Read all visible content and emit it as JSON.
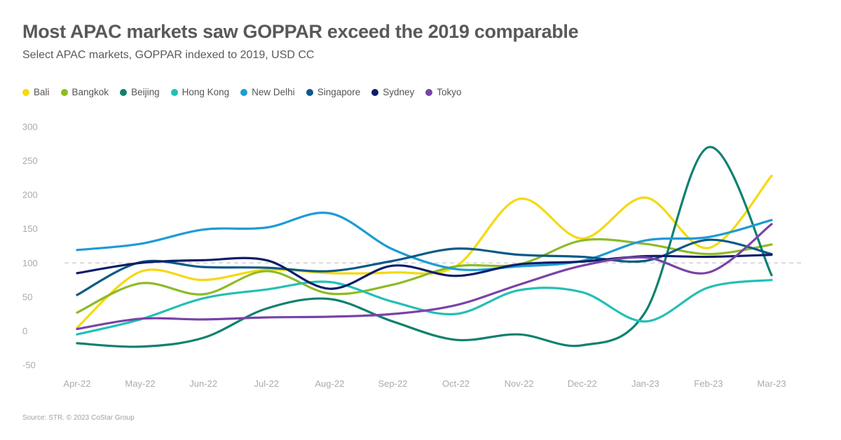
{
  "header": {
    "title": "Most APAC markets saw GOPPAR exceed the 2019 comparable",
    "subtitle": "Select APAC markets, GOPPAR indexed to 2019, USD CC"
  },
  "source": "Source: STR. © 2023 CoStar Group",
  "chart_data": {
    "type": "line",
    "title": "Most APAC markets saw GOPPAR exceed the 2019 comparable",
    "subtitle": "Select APAC markets, GOPPAR indexed to 2019, USD CC",
    "categories": [
      "Apr-22",
      "May-22",
      "Jun-22",
      "Jul-22",
      "Aug-22",
      "Sep-22",
      "Oct-22",
      "Nov-22",
      "Dec-22",
      "Jan-23",
      "Feb-23",
      "Mar-23"
    ],
    "ylim": [
      -50,
      300
    ],
    "yticks": [
      -50,
      0,
      50,
      100,
      150,
      200,
      250,
      300
    ],
    "reference_line": 100,
    "grid": false,
    "legend_position": "top-left",
    "series": [
      {
        "name": "Bali",
        "color": "#f5d90f",
        "values": [
          5,
          87,
          75,
          90,
          85,
          86,
          95,
          194,
          136,
          196,
          122,
          228
        ]
      },
      {
        "name": "Bangkok",
        "color": "#8dbb25",
        "values": [
          27,
          70,
          54,
          88,
          55,
          68,
          95,
          98,
          133,
          128,
          113,
          127
        ]
      },
      {
        "name": "Beijing",
        "color": "#0e8170",
        "values": [
          -18,
          -23,
          -10,
          33,
          47,
          14,
          -13,
          -5,
          -21,
          28,
          270,
          82
        ]
      },
      {
        "name": "Hong Kong",
        "color": "#23bfb7",
        "values": [
          -5,
          17,
          48,
          61,
          72,
          43,
          25,
          60,
          57,
          14,
          64,
          75
        ]
      },
      {
        "name": "New Delhi",
        "color": "#1d9bd6",
        "values": [
          119,
          128,
          149,
          152,
          173,
          120,
          91,
          95,
          103,
          133,
          138,
          163
        ]
      },
      {
        "name": "Singapore",
        "color": "#0c5a86",
        "values": [
          53,
          101,
          94,
          93,
          88,
          103,
          121,
          112,
          109,
          103,
          134,
          113
        ]
      },
      {
        "name": "Sydney",
        "color": "#0c1e6a",
        "values": [
          85,
          100,
          104,
          104,
          62,
          96,
          81,
          98,
          102,
          110,
          109,
          112
        ]
      },
      {
        "name": "Tokyo",
        "color": "#7a42a8",
        "values": [
          3,
          18,
          17,
          20,
          21,
          25,
          38,
          68,
          96,
          108,
          86,
          157
        ]
      }
    ]
  }
}
